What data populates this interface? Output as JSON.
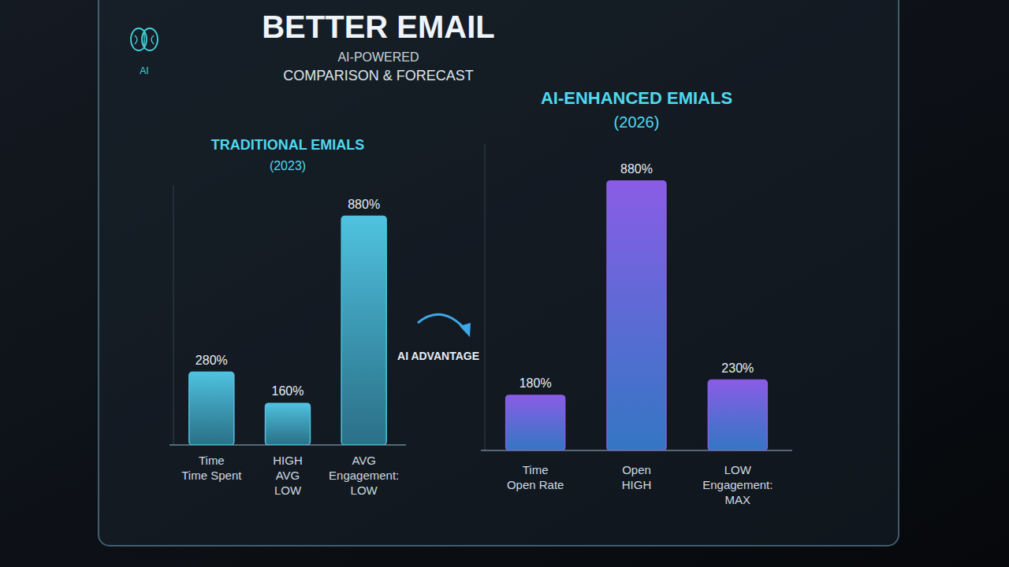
{
  "header": {
    "title": "BETTER EMAIL",
    "subtitle": "AI-POWERED",
    "subtitle2": "COMPARISON & FORECAST",
    "icon_label": "AI"
  },
  "annotation": "AI ADVANTAGE",
  "chart_data": [
    {
      "type": "bar",
      "title": "TRADITIONAL EMIALS",
      "subtitle": "(2023)",
      "categories": [
        "Time\nTime Spent",
        "HIGH\nAVG\nLOW",
        "AVG\nEngagement:\nLOW"
      ],
      "values": [
        280,
        160,
        880
      ],
      "value_labels": [
        "280%",
        "160%",
        "880%"
      ],
      "color": "#4fc3e0",
      "ylim": [
        0,
        1000
      ],
      "tick_labels": false,
      "data_labels": true
    },
    {
      "type": "bar",
      "title": "AI-ENHANCED EMIALS",
      "subtitle": "(2026)",
      "categories": [
        "Time\nOpen Rate",
        "Open\nHIGH",
        "LOW\nEngagement:\nMAX"
      ],
      "values": [
        180,
        880,
        230
      ],
      "value_labels": [
        "180%",
        "880%",
        "230%"
      ],
      "color": "#8a5ce6",
      "ylim": [
        0,
        1000
      ],
      "tick_labels": false,
      "data_labels": true
    }
  ]
}
